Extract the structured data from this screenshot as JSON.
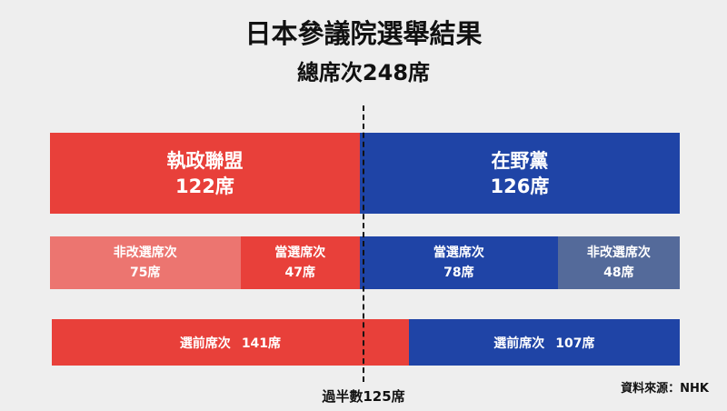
{
  "title": "日本參議院選舉結果",
  "subtitle": "總席次248席",
  "chart_data": {
    "type": "bar",
    "total_seats": 248,
    "majority_label": "過半數125席",
    "majority_value": 125,
    "rows": [
      {
        "id": "totals",
        "segments": [
          {
            "label": "執政聯盟",
            "value_label": "122席",
            "value": 122,
            "color": "#e8403a"
          },
          {
            "label": "在野黨",
            "value_label": "126席",
            "value": 126,
            "color": "#1f44a6"
          }
        ]
      },
      {
        "id": "breakdown",
        "segments": [
          {
            "label": "非改選席次",
            "value_label": "75席",
            "value": 75,
            "color": "#ec7570"
          },
          {
            "label": "當選席次",
            "value_label": "47席",
            "value": 47,
            "color": "#e8403a"
          },
          {
            "label": "當選席次",
            "value_label": "78席",
            "value": 78,
            "color": "#1f44a6"
          },
          {
            "label": "非改選席次",
            "value_label": "48席",
            "value": 48,
            "color": "#546a9a"
          }
        ]
      },
      {
        "id": "pre_election",
        "segments": [
          {
            "label": "選前席次",
            "value_label": "141席",
            "value": 141,
            "color": "#e8403a"
          },
          {
            "label": "選前席次",
            "value_label": "107席",
            "value": 107,
            "color": "#1f44a6"
          }
        ]
      }
    ],
    "source": "資料來源：NHK"
  }
}
